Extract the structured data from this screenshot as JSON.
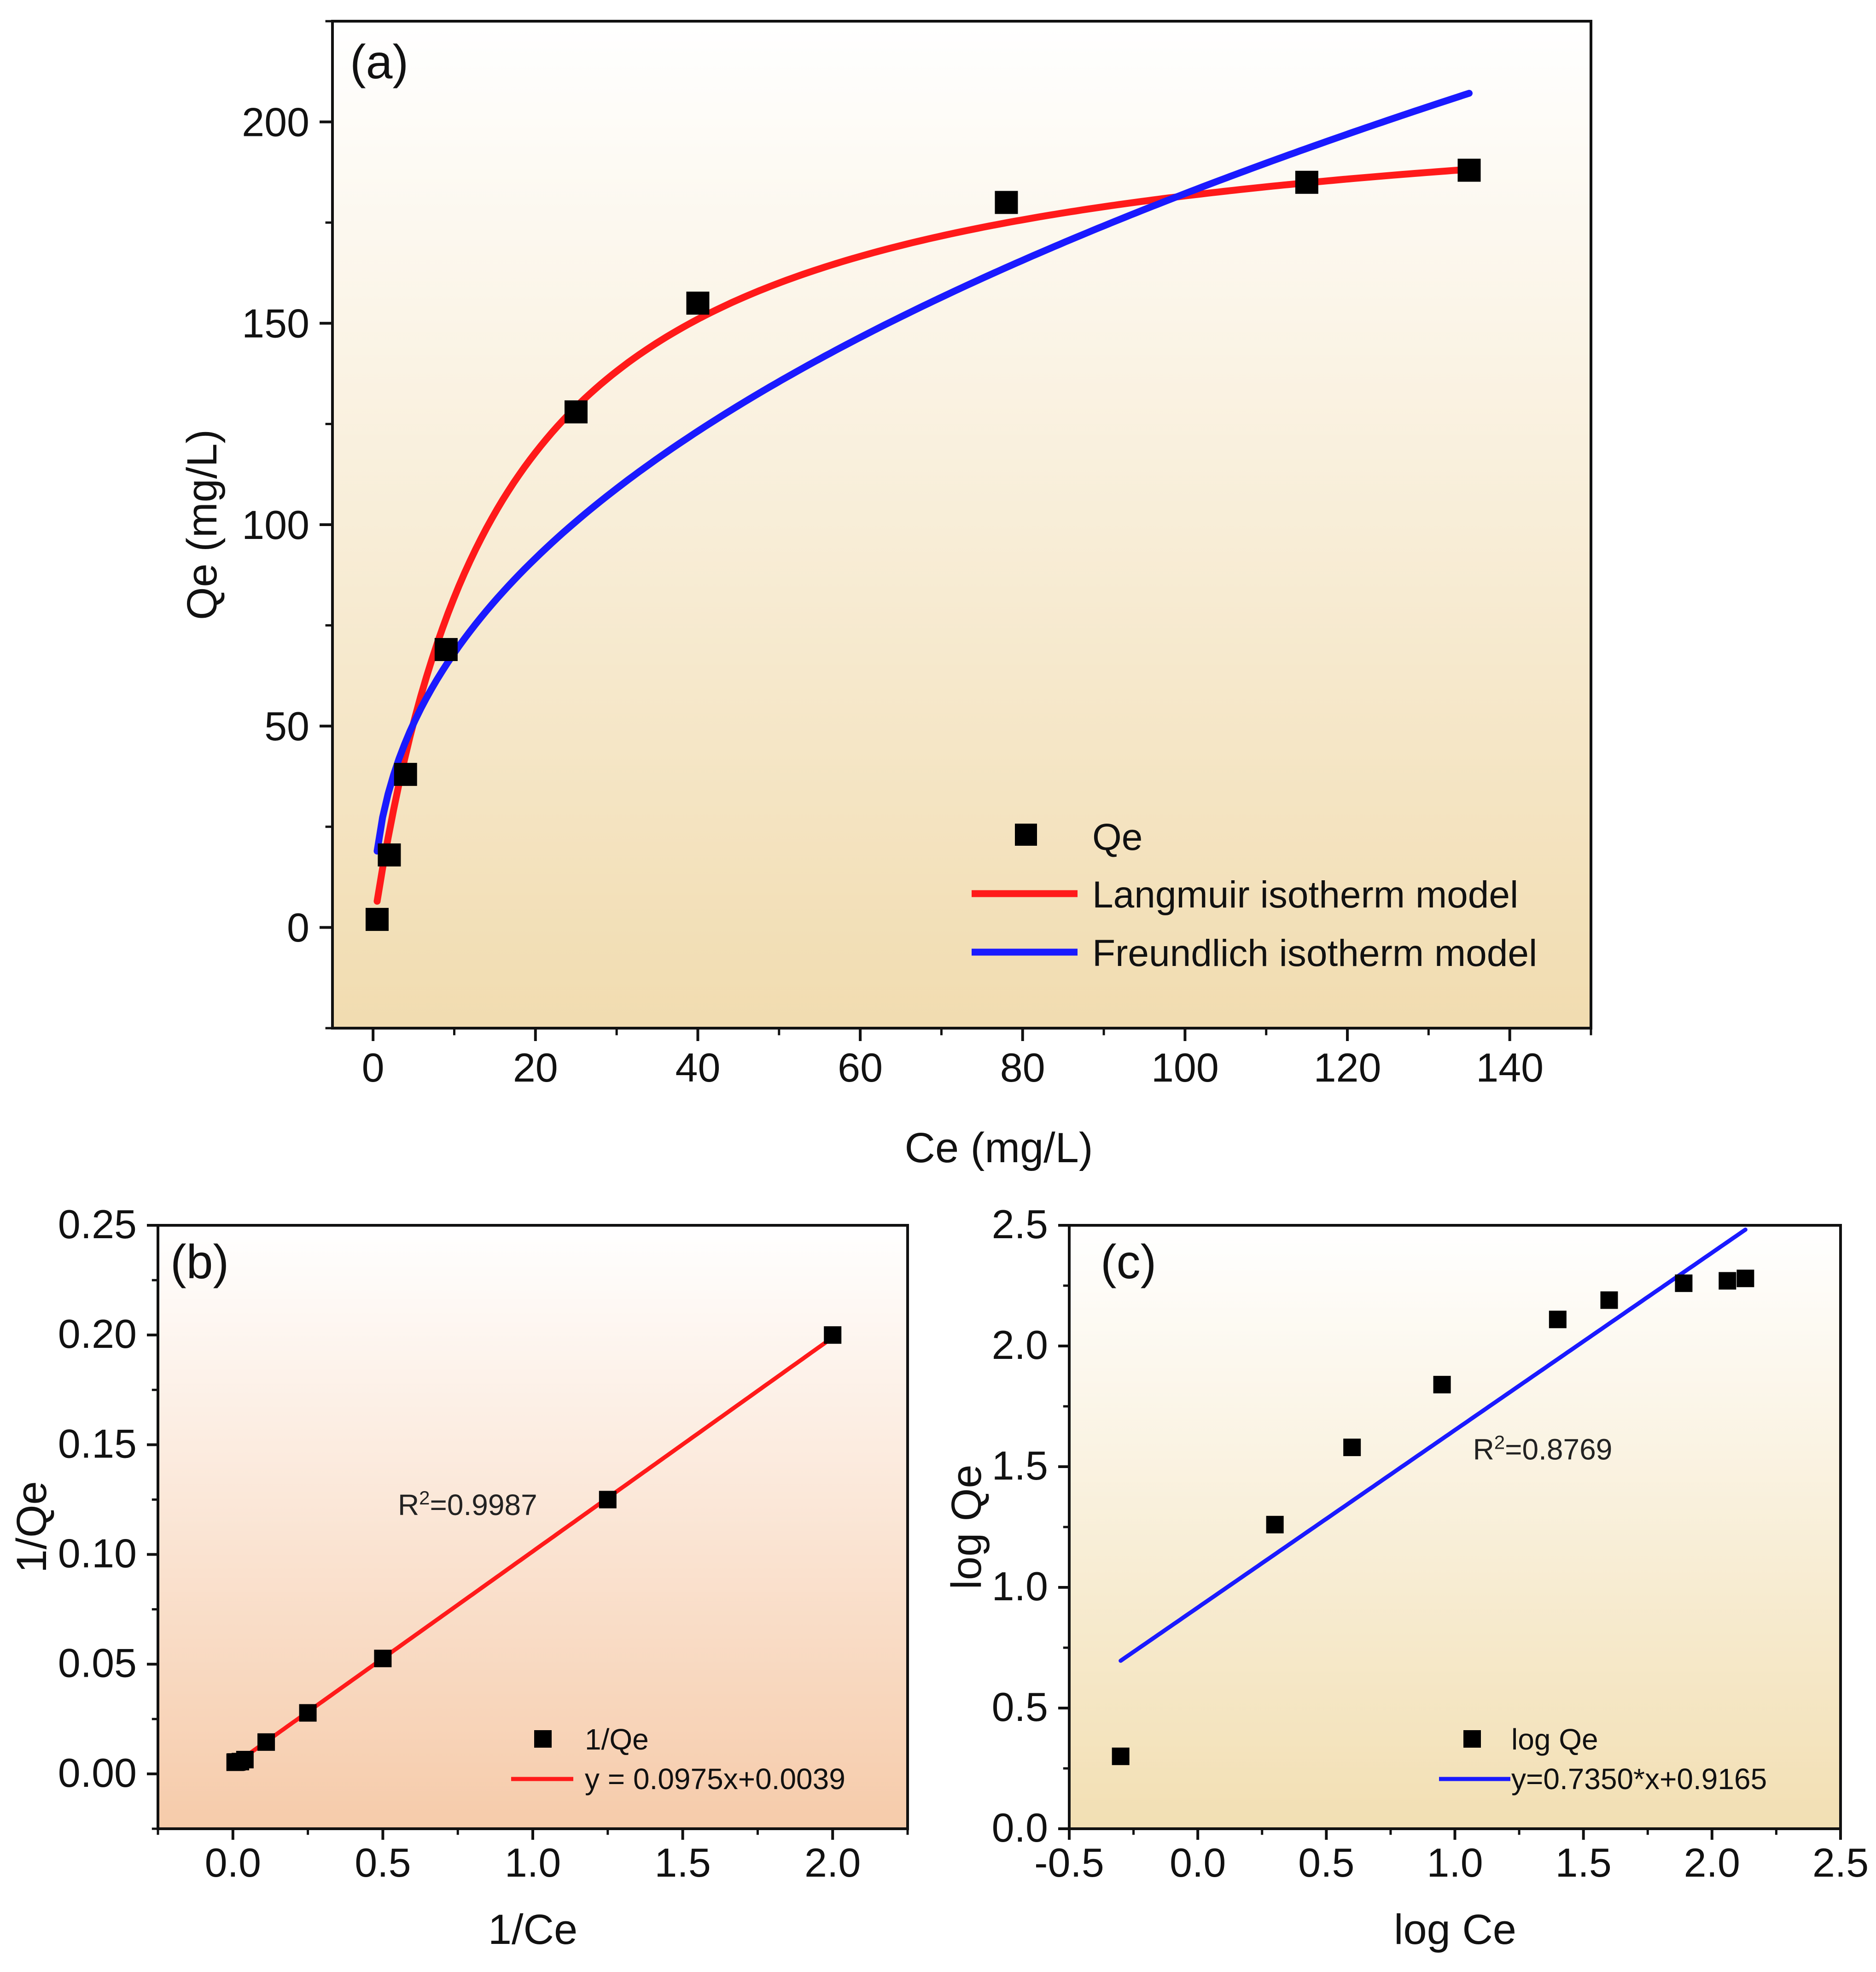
{
  "chart_data": [
    {
      "id": "a",
      "type": "scatter",
      "panel_label": "(a)",
      "xlabel": "Ce (mg/L)",
      "ylabel": "Qe (mg/L)",
      "xlim": [
        -5,
        150
      ],
      "ylim": [
        -25,
        225
      ],
      "xticks": [
        0,
        20,
        40,
        60,
        80,
        100,
        120,
        140
      ],
      "yticks": [
        0,
        50,
        100,
        150,
        200
      ],
      "xtick_labels": [
        "0",
        "20",
        "40",
        "60",
        "80",
        "100",
        "120",
        "140"
      ],
      "ytick_labels": [
        "0",
        "50",
        "100",
        "150",
        "200"
      ],
      "series": [
        {
          "name": "Qe",
          "kind": "points",
          "color": "#000000",
          "x": [
            0.5,
            2,
            4,
            9,
            25,
            40,
            78,
            115,
            135
          ],
          "y": [
            2,
            18,
            38,
            69,
            128,
            155,
            180,
            185,
            188
          ]
        },
        {
          "name": "Langmuir isotherm model",
          "kind": "line",
          "color": "#ff1a1a",
          "model": {
            "form": "langmuir",
            "qmax": 210,
            "kl": 0.064
          },
          "x_range": [
            0.5,
            135
          ]
        },
        {
          "name": "Freundlich isotherm model",
          "kind": "line",
          "color": "#1a1aff",
          "model": {
            "form": "freundlich",
            "kf": 25.5,
            "n_inv": 0.427
          },
          "x_range": [
            0.5,
            135
          ]
        }
      ],
      "legend": [
        "Qe",
        "Langmuir isotherm model",
        "Freundlich isotherm model"
      ],
      "legend_position": "bottom-right"
    },
    {
      "id": "b",
      "type": "scatter",
      "panel_label": "(b)",
      "xlabel": "1/Ce",
      "ylabel": "1/Qe",
      "xlim": [
        -0.25,
        2.25
      ],
      "ylim": [
        -0.025,
        0.25
      ],
      "xticks": [
        0.0,
        0.5,
        1.0,
        1.5,
        2.0
      ],
      "yticks": [
        0.0,
        0.05,
        0.1,
        0.15,
        0.2,
        0.25
      ],
      "xtick_labels": [
        "0.0",
        "0.5",
        "1.0",
        "1.5",
        "2.0"
      ],
      "ytick_labels": [
        "0.00",
        "0.05",
        "0.10",
        "0.15",
        "0.20",
        "0.25"
      ],
      "series": [
        {
          "name": "1/Qe",
          "kind": "points",
          "color": "#000000",
          "x": [
            0.0074,
            0.0087,
            0.0128,
            0.025,
            0.04,
            0.111,
            0.25,
            0.5,
            1.25,
            2.0
          ],
          "y": [
            0.0053,
            0.0054,
            0.0054,
            0.0056,
            0.0065,
            0.0145,
            0.0278,
            0.0526,
            0.125,
            0.2
          ]
        },
        {
          "name": "y =  0.0975x+0.0039",
          "kind": "line",
          "color": "#ff1a1a",
          "slope": 0.0975,
          "intercept": 0.0039,
          "x_range": [
            0.0,
            2.0
          ]
        }
      ],
      "annotation": {
        "prefix": "R",
        "sup": "2",
        "value": "=0.9987",
        "x": 0.55,
        "y": 0.118
      },
      "legend": [
        "1/Qe",
        "y =  0.0975x+0.0039"
      ],
      "legend_position": "bottom-right"
    },
    {
      "id": "c",
      "type": "scatter",
      "panel_label": "(c)",
      "xlabel": "log Ce",
      "ylabel": "log Qe",
      "xlim": [
        -0.5,
        2.5
      ],
      "ylim": [
        0.0,
        2.5
      ],
      "xticks": [
        -0.5,
        0.0,
        0.5,
        1.0,
        1.5,
        2.0,
        2.5
      ],
      "yticks": [
        0.0,
        0.5,
        1.0,
        1.5,
        2.0,
        2.5
      ],
      "xtick_labels": [
        "-0.5",
        "0.0",
        "0.5",
        "1.0",
        "1.5",
        "2.0",
        "2.5"
      ],
      "ytick_labels": [
        "0.0",
        "0.5",
        "1.0",
        "1.5",
        "2.0",
        "2.5"
      ],
      "series": [
        {
          "name": "log Qe",
          "kind": "points",
          "color": "#000000",
          "x": [
            -0.3,
            0.3,
            0.6,
            0.95,
            1.4,
            1.6,
            1.89,
            2.06,
            2.13
          ],
          "y": [
            0.3,
            1.26,
            1.58,
            1.84,
            2.11,
            2.19,
            2.26,
            2.27,
            2.28
          ]
        },
        {
          "name": "y=0.7350*x+0.9165",
          "kind": "line",
          "color": "#1a1aff",
          "slope": 0.735,
          "intercept": 0.9165,
          "x_range": [
            -0.3,
            2.13
          ]
        }
      ],
      "annotation": {
        "prefix": "R",
        "sup": "2",
        "value": "=0.8769",
        "x": 1.07,
        "y": 1.53
      },
      "legend": [
        "log Qe",
        "y=0.7350*x+0.9165"
      ],
      "legend_position": "bottom-center"
    }
  ]
}
